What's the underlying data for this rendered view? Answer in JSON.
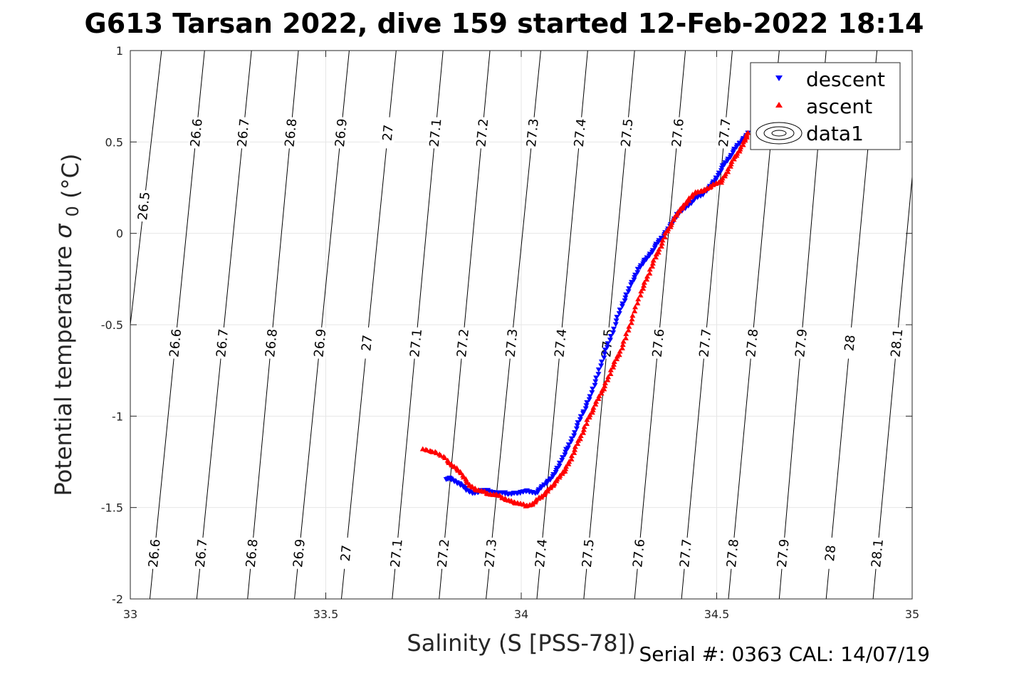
{
  "chart_data": {
    "type": "scatter",
    "title": "G613 Tarsan 2022, dive 159 started 12-Feb-2022 18:14",
    "xlabel": "Salinity (S [PSS-78])",
    "ylabel_main": "Potential temperature",
    "ylabel_symbol": "σ",
    "ylabel_subscript": "0",
    "ylabel_unit": "(°C)",
    "xlim": [
      33,
      35
    ],
    "ylim": [
      -2,
      1
    ],
    "xticks": [
      "33",
      "33.5",
      "34",
      "34.5",
      "35"
    ],
    "yticks": [
      "-2",
      "-1.5",
      "-1",
      "-0.5",
      "0",
      "0.5",
      "1"
    ],
    "grid": true,
    "legend_position": "top-right",
    "legend": [
      {
        "label": "descent",
        "color": "#0000ff",
        "marker": "triangle-down"
      },
      {
        "label": "ascent",
        "color": "#ff0000",
        "marker": "triangle-up"
      },
      {
        "label": "data1",
        "color": "#000000",
        "marker": "contour"
      }
    ],
    "footer": "Serial #: 0363  CAL: 14/07/19",
    "contours": {
      "levels": [
        "26.5",
        "26.6",
        "26.7",
        "26.8",
        "26.9",
        "27",
        "27.1",
        "27.2",
        "27.3",
        "27.4",
        "27.5",
        "27.6",
        "27.7",
        "27.8",
        "27.9",
        "28",
        "28.1"
      ],
      "x_at_top": [
        33.08,
        33.19,
        33.31,
        33.43,
        33.56,
        33.68,
        33.8,
        33.92,
        34.05,
        34.17,
        34.29,
        34.42,
        34.54,
        34.66,
        34.78,
        34.91,
        35.03
      ],
      "x_at_bottom": [
        32.92,
        33.05,
        33.17,
        33.3,
        33.42,
        33.54,
        33.67,
        33.79,
        33.91,
        34.04,
        34.16,
        34.29,
        34.41,
        34.53,
        34.66,
        34.78,
        34.9
      ],
      "label_rows": [
        {
          "y": 0.55,
          "levels": [
            "26.6",
            "26.7",
            "26.8",
            "26.9",
            "27",
            "27.1",
            "27.2",
            "27.3",
            "27.4",
            "27.5",
            "27.6",
            "27.7"
          ]
        },
        {
          "y": 0.15,
          "levels": [
            "26.5"
          ]
        },
        {
          "y": -0.6,
          "levels": [
            "26.6",
            "26.7",
            "26.8",
            "26.9",
            "27",
            "27.1",
            "27.2",
            "27.3",
            "27.4",
            "27.5",
            "27.6",
            "27.7",
            "27.8",
            "27.9",
            "28",
            "28.1"
          ]
        },
        {
          "y": -1.75,
          "levels": [
            "26.6",
            "26.7",
            "26.8",
            "26.9",
            "27",
            "27.1",
            "27.2",
            "27.3",
            "27.4",
            "27.5",
            "27.6",
            "27.7",
            "27.8",
            "27.9",
            "28",
            "28.1"
          ]
        }
      ]
    },
    "series": [
      {
        "name": "descent",
        "color": "#0000ff",
        "marker": "triangle-down",
        "x": [
          33.81,
          33.82,
          33.84,
          33.86,
          33.88,
          33.9,
          33.92,
          33.94,
          33.96,
          33.98,
          34.0,
          34.02,
          34.04,
          34.06,
          34.08,
          34.1,
          34.12,
          34.14,
          34.16,
          34.18,
          34.2,
          34.22,
          34.24,
          34.26,
          34.28,
          34.3,
          34.32,
          34.34,
          34.36,
          34.38,
          34.4,
          34.42,
          34.44,
          34.46,
          34.48,
          34.5,
          34.52,
          34.54,
          34.56,
          34.58
        ],
        "y": [
          -1.35,
          -1.34,
          -1.37,
          -1.4,
          -1.42,
          -1.41,
          -1.41,
          -1.42,
          -1.42,
          -1.42,
          -1.42,
          -1.41,
          -1.42,
          -1.37,
          -1.33,
          -1.26,
          -1.17,
          -1.07,
          -0.97,
          -0.87,
          -0.75,
          -0.62,
          -0.5,
          -0.38,
          -0.28,
          -0.2,
          -0.14,
          -0.08,
          -0.02,
          0.04,
          0.1,
          0.14,
          0.18,
          0.21,
          0.25,
          0.3,
          0.38,
          0.44,
          0.5,
          0.55
        ]
      },
      {
        "name": "ascent",
        "color": "#ff0000",
        "marker": "triangle-up",
        "x": [
          33.75,
          33.78,
          33.81,
          33.83,
          33.85,
          33.87,
          33.89,
          33.91,
          33.93,
          33.95,
          33.97,
          33.99,
          34.01,
          34.03,
          34.05,
          34.07,
          34.09,
          34.11,
          34.13,
          34.15,
          34.17,
          34.19,
          34.21,
          34.23,
          34.25,
          34.27,
          34.29,
          34.31,
          34.33,
          34.35,
          34.37,
          34.39,
          34.41,
          34.43,
          34.45,
          34.47,
          34.49,
          34.51,
          34.53,
          34.55,
          34.57,
          34.58
        ],
        "y": [
          -1.18,
          -1.2,
          -1.24,
          -1.28,
          -1.32,
          -1.38,
          -1.41,
          -1.42,
          -1.43,
          -1.44,
          -1.46,
          -1.48,
          -1.49,
          -1.48,
          -1.44,
          -1.4,
          -1.36,
          -1.3,
          -1.22,
          -1.12,
          -1.02,
          -0.94,
          -0.85,
          -0.75,
          -0.66,
          -0.55,
          -0.43,
          -0.3,
          -0.2,
          -0.1,
          0.0,
          0.07,
          0.14,
          0.19,
          0.23,
          0.24,
          0.26,
          0.28,
          0.35,
          0.43,
          0.5,
          0.55
        ]
      }
    ]
  }
}
